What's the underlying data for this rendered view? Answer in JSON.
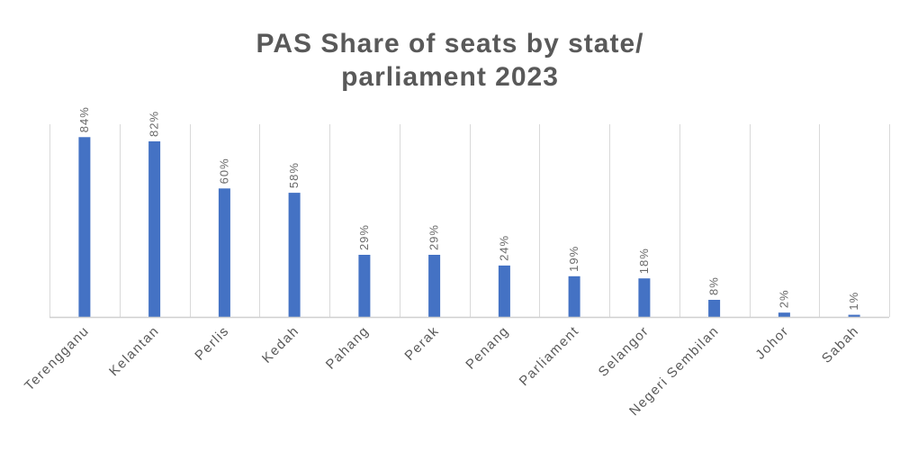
{
  "chart_data": {
    "type": "bar",
    "title_lines": [
      "PAS Share of seats by state/",
      "parliament 2023"
    ],
    "categories": [
      "Terengganu",
      "Kelantan",
      "Perlis",
      "Kedah",
      "Pahang",
      "Perak",
      "Penang",
      "Parliament",
      "Selangor",
      "Negeri Sembilan",
      "Johor",
      "Sabah"
    ],
    "values": [
      84,
      82,
      60,
      58,
      29,
      29,
      24,
      19,
      18,
      8,
      2,
      1
    ],
    "data_labels": [
      "84%",
      "82%",
      "60%",
      "58%",
      "29%",
      "29%",
      "24%",
      "19%",
      "18%",
      "8%",
      "2%",
      "1%"
    ],
    "ylim": [
      0,
      90
    ],
    "grid": "vertical",
    "legend": "none",
    "bar_color": "#4472c4"
  }
}
